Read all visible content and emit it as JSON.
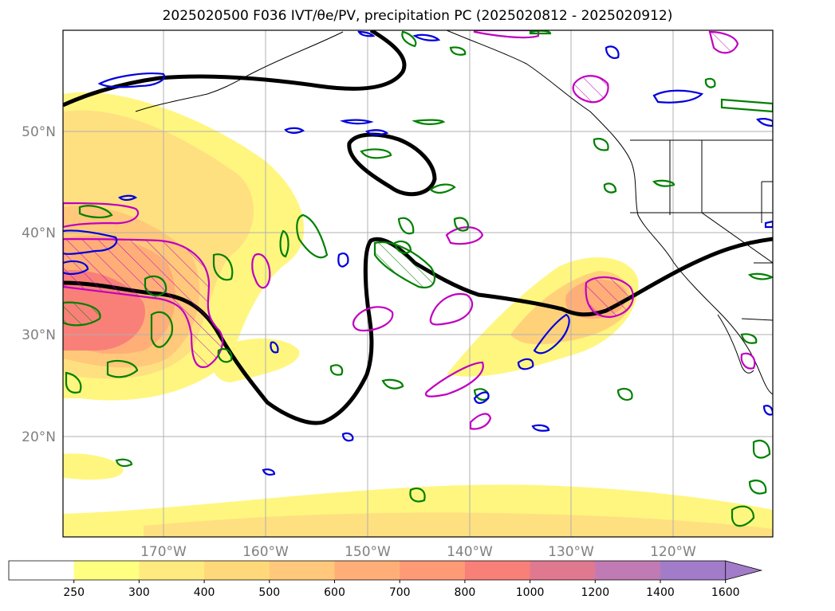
{
  "title": "2025020500 F036 IVT/θe/PV, precipitation PC (2025020812 - 2025020912)",
  "map": {
    "lat_labels": [
      "50°N",
      "40°N",
      "30°N",
      "20°N"
    ],
    "lon_labels": [
      "170°W",
      "160°W",
      "150°W",
      "140°W",
      "130°W",
      "120°W"
    ],
    "gridlines": true,
    "colors": {
      "ivt_low": "#fff680",
      "ivt_mid": "#ffd27a",
      "ivt_high": "#f59a7a",
      "theta_e_contour": "#000000",
      "precip_positive": "#008000",
      "precip_negative": "#0000dd",
      "pv_contour": "#c000c0",
      "coastline": "#000000",
      "grid": "#b0b0b0"
    }
  },
  "colorbar": {
    "ticks": [
      "250",
      "300",
      "400",
      "500",
      "600",
      "700",
      "800",
      "1000",
      "1200",
      "1400",
      "1600"
    ],
    "colors": [
      "#ffffff",
      "#ffff80",
      "#ffea80",
      "#ffd87a",
      "#ffc87a",
      "#ffae78",
      "#ff9a76",
      "#f88078",
      "#e07890",
      "#c07ab4",
      "#a27cc8"
    ],
    "extend": "max"
  }
}
